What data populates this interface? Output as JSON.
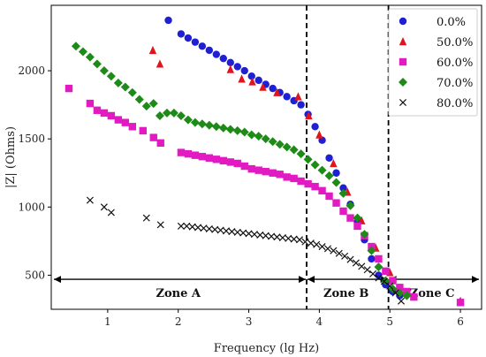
{
  "chart_data": {
    "type": "scatter",
    "xlabel": "Frequency (lg Hz)",
    "ylabel": "|Z| (Ohms)",
    "xlim": [
      0.2,
      6.3
    ],
    "ylim": [
      250,
      2480
    ],
    "x_ticks": [
      1,
      2,
      3,
      4,
      5,
      6
    ],
    "y_ticks": [
      500,
      1000,
      1500,
      2000
    ],
    "grid": false,
    "legend_position": "top-right",
    "zone_boundaries": [
      3.82,
      4.98
    ],
    "zones": [
      {
        "label": "Zone A",
        "x_center": 2.0
      },
      {
        "label": "Zone B",
        "x_center": 4.38
      },
      {
        "label": "Zone C",
        "x_center": 5.6
      }
    ],
    "zone_arrow_y": 470,
    "series": [
      {
        "name": "0.0%",
        "color": "#1f1fd6",
        "marker": "circle",
        "x": [
          1.86,
          2.04,
          2.14,
          2.24,
          2.34,
          2.44,
          2.54,
          2.64,
          2.74,
          2.84,
          2.94,
          3.04,
          3.14,
          3.24,
          3.34,
          3.44,
          3.54,
          3.64,
          3.74,
          3.84,
          3.94,
          4.04,
          4.14,
          4.24,
          4.34,
          4.44,
          4.54,
          4.64,
          4.74,
          4.84,
          4.94,
          5.04,
          5.14
        ],
        "y": [
          2370,
          2270,
          2240,
          2210,
          2180,
          2150,
          2120,
          2090,
          2060,
          2030,
          2000,
          1960,
          1930,
          1900,
          1870,
          1840,
          1810,
          1780,
          1750,
          1680,
          1590,
          1490,
          1360,
          1250,
          1140,
          1020,
          890,
          760,
          620,
          500,
          430,
          380,
          350
        ]
      },
      {
        "name": "50.0%",
        "color": "#e0141c",
        "marker": "triangle",
        "x": [
          1.64,
          1.74,
          2.74,
          2.9,
          3.05,
          3.2,
          3.4,
          3.7,
          3.85,
          4.0,
          4.2,
          4.4,
          4.6,
          4.8,
          5.0,
          6.0
        ],
        "y": [
          2150,
          2050,
          2010,
          1940,
          1920,
          1880,
          1840,
          1810,
          1670,
          1530,
          1320,
          1110,
          900,
          700,
          520,
          310
        ]
      },
      {
        "name": "60.0%",
        "color": "#e11ac2",
        "marker": "square",
        "x": [
          0.45,
          0.75,
          0.85,
          0.95,
          1.05,
          1.15,
          1.25,
          1.35,
          1.5,
          1.65,
          1.75,
          2.04,
          2.14,
          2.24,
          2.34,
          2.44,
          2.54,
          2.64,
          2.74,
          2.84,
          2.94,
          3.04,
          3.14,
          3.24,
          3.34,
          3.44,
          3.54,
          3.64,
          3.74,
          3.84,
          3.94,
          4.04,
          4.14,
          4.24,
          4.34,
          4.44,
          4.54,
          4.64,
          4.74,
          4.84,
          4.94,
          5.04,
          5.14,
          5.24,
          5.34,
          6.0
        ],
        "y": [
          1870,
          1760,
          1710,
          1690,
          1670,
          1640,
          1620,
          1590,
          1560,
          1510,
          1470,
          1400,
          1390,
          1380,
          1370,
          1360,
          1350,
          1340,
          1330,
          1320,
          1300,
          1280,
          1270,
          1260,
          1250,
          1240,
          1220,
          1210,
          1190,
          1170,
          1150,
          1120,
          1080,
          1030,
          970,
          920,
          860,
          790,
          710,
          620,
          530,
          460,
          410,
          380,
          340,
          300
        ]
      },
      {
        "name": "70.0%",
        "color": "#1e8a18",
        "marker": "diamond",
        "x": [
          0.55,
          0.65,
          0.75,
          0.85,
          0.95,
          1.05,
          1.15,
          1.25,
          1.35,
          1.45,
          1.55,
          1.65,
          1.74,
          1.84,
          1.94,
          2.04,
          2.14,
          2.24,
          2.34,
          2.44,
          2.54,
          2.64,
          2.74,
          2.84,
          2.94,
          3.04,
          3.14,
          3.24,
          3.34,
          3.44,
          3.54,
          3.64,
          3.74,
          3.84,
          3.94,
          4.04,
          4.14,
          4.24,
          4.34,
          4.44,
          4.54,
          4.64,
          4.74,
          4.84,
          4.94,
          5.04,
          5.14,
          5.24
        ],
        "y": [
          2180,
          2140,
          2100,
          2050,
          2000,
          1960,
          1910,
          1880,
          1840,
          1790,
          1740,
          1760,
          1670,
          1690,
          1690,
          1670,
          1640,
          1620,
          1610,
          1600,
          1590,
          1580,
          1570,
          1560,
          1550,
          1530,
          1520,
          1500,
          1480,
          1460,
          1440,
          1420,
          1390,
          1350,
          1310,
          1270,
          1230,
          1180,
          1100,
          1010,
          920,
          800,
          680,
          560,
          460,
          400,
          370,
          350
        ]
      },
      {
        "name": "80.0%",
        "color": "#111111",
        "marker": "x",
        "x": [
          0.75,
          0.95,
          1.05,
          1.55,
          1.75,
          2.04,
          2.12,
          2.2,
          2.28,
          2.36,
          2.44,
          2.52,
          2.6,
          2.68,
          2.76,
          2.84,
          2.92,
          3.0,
          3.08,
          3.16,
          3.24,
          3.32,
          3.4,
          3.48,
          3.56,
          3.64,
          3.72,
          3.8,
          3.88,
          3.96,
          4.04,
          4.12,
          4.2,
          4.28,
          4.36,
          4.44,
          4.52,
          4.6,
          4.68,
          4.76,
          4.84,
          4.92,
          5.0,
          5.08,
          5.16
        ],
        "y": [
          1050,
          1000,
          960,
          920,
          870,
          860,
          860,
          855,
          850,
          845,
          840,
          835,
          830,
          825,
          820,
          815,
          810,
          805,
          800,
          795,
          790,
          785,
          780,
          775,
          770,
          765,
          760,
          745,
          735,
          725,
          710,
          695,
          680,
          660,
          640,
          615,
          590,
          565,
          540,
          510,
          480,
          455,
          420,
          370,
          310
        ]
      }
    ]
  }
}
